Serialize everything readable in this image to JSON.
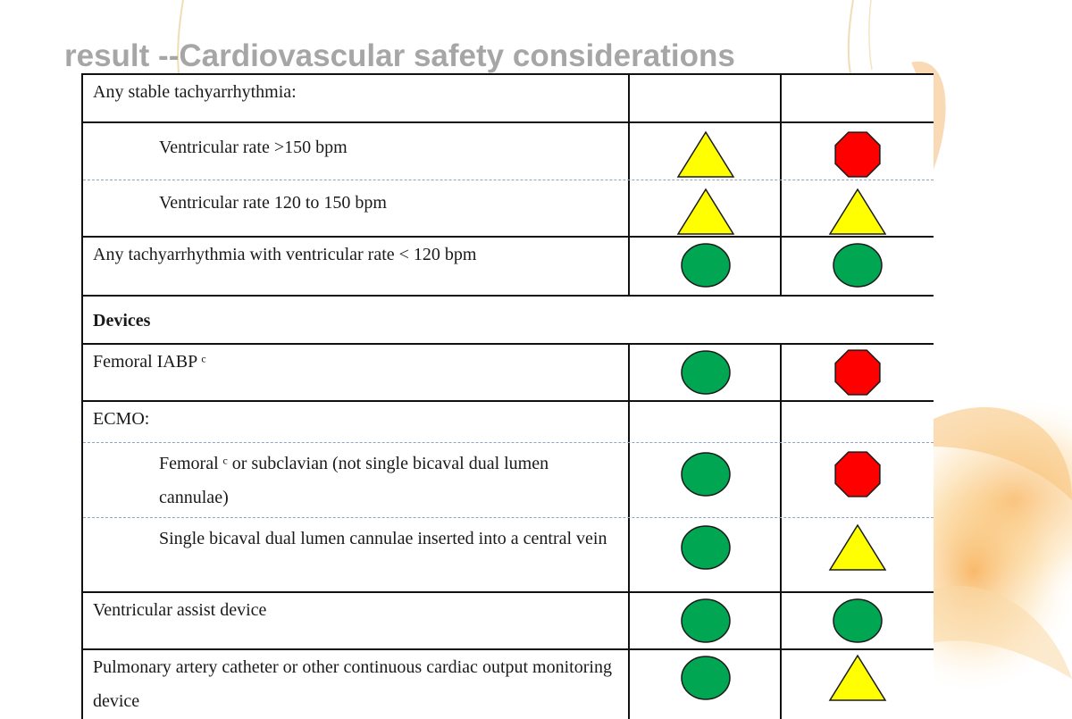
{
  "slide": {
    "title": "result --Cardiovascular safety considerations"
  },
  "symbols": {
    "green-circle": "#00a651",
    "yellow-triangle": "#ffff00",
    "red-octagon": "#ff0000"
  },
  "table": {
    "rows": [
      {
        "label": "Any stable tachyarrhythmia:",
        "level": 0,
        "bold": false,
        "a": "",
        "b": ""
      },
      {
        "label": "Ventricular rate >150 bpm",
        "level": 1,
        "bold": false,
        "a": "yellow-triangle",
        "b": "red-octagon"
      },
      {
        "label": "Ventricular rate 120 to 150 bpm",
        "level": 1,
        "bold": false,
        "a": "yellow-triangle",
        "b": "yellow-triangle"
      },
      {
        "label": "Any tachyarrhythmia with ventricular rate < 120 bpm",
        "level": 0,
        "bold": false,
        "a": "green-circle",
        "b": "green-circle"
      },
      {
        "label": "Devices",
        "level": 0,
        "bold": true,
        "a": "",
        "b": ""
      },
      {
        "label": "Femoral IABP ᶜ",
        "level": 0,
        "bold": false,
        "a": "green-circle",
        "b": "red-octagon"
      },
      {
        "label": "ECMO:",
        "level": 0,
        "bold": false,
        "a": "",
        "b": ""
      },
      {
        "label": "Femoral ᶜ or subclavian (not single bicaval dual lumen cannulae)",
        "level": 1,
        "bold": false,
        "a": "green-circle",
        "b": "red-octagon"
      },
      {
        "label": "Single bicaval dual lumen cannulae inserted into a central vein",
        "level": 1,
        "bold": false,
        "a": "green-circle",
        "b": "yellow-triangle"
      },
      {
        "label": "Ventricular assist device",
        "level": 0,
        "bold": false,
        "a": "green-circle",
        "b": "green-circle"
      },
      {
        "label": "Pulmonary artery catheter or other continuous cardiac output monitoring device",
        "level": 0,
        "bold": false,
        "a": "green-circle",
        "b": "yellow-triangle"
      }
    ]
  }
}
